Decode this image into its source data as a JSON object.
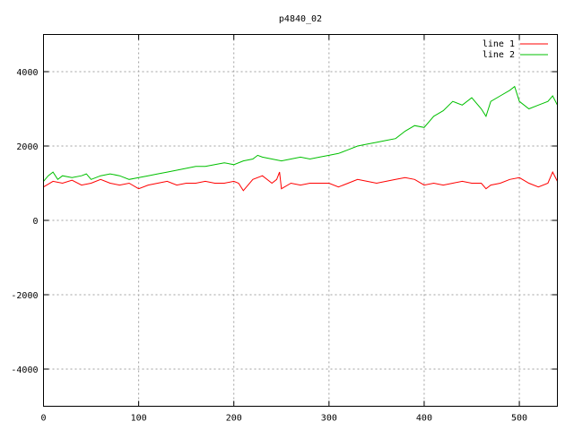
{
  "chart_data": {
    "type": "line",
    "title": "p4840_02",
    "xlim": [
      0,
      540
    ],
    "ylim": [
      -5000,
      5000
    ],
    "x_ticks": [
      0,
      100,
      200,
      300,
      400,
      500
    ],
    "y_ticks": [
      -4000,
      -2000,
      0,
      2000,
      4000
    ],
    "grid": true,
    "legend_position": "top-right",
    "series": [
      {
        "name": "line 1",
        "color": "#ff0000",
        "x": [
          0,
          10,
          20,
          30,
          40,
          50,
          60,
          70,
          80,
          90,
          100,
          110,
          120,
          130,
          140,
          150,
          160,
          170,
          180,
          190,
          200,
          205,
          210,
          220,
          230,
          240,
          245,
          248,
          250,
          260,
          270,
          280,
          290,
          300,
          310,
          320,
          330,
          340,
          350,
          360,
          370,
          380,
          390,
          400,
          410,
          420,
          430,
          440,
          450,
          460,
          465,
          470,
          480,
          490,
          500,
          510,
          520,
          530,
          535,
          540
        ],
        "y": [
          900,
          1050,
          1000,
          1080,
          950,
          1000,
          1100,
          1000,
          950,
          1000,
          850,
          950,
          1000,
          1050,
          950,
          1000,
          1000,
          1050,
          1000,
          1000,
          1050,
          1000,
          800,
          1100,
          1200,
          1000,
          1100,
          1300,
          850,
          1000,
          950,
          1000,
          1000,
          1000,
          900,
          1000,
          1100,
          1050,
          1000,
          1050,
          1100,
          1150,
          1100,
          950,
          1000,
          950,
          1000,
          1050,
          1000,
          1000,
          850,
          950,
          1000,
          1100,
          1150,
          1000,
          900,
          1000,
          1300,
          1050
        ]
      },
      {
        "name": "line 2",
        "color": "#00c000",
        "x": [
          0,
          5,
          10,
          15,
          20,
          30,
          40,
          45,
          50,
          60,
          70,
          80,
          90,
          100,
          110,
          120,
          130,
          140,
          150,
          160,
          170,
          180,
          190,
          200,
          210,
          220,
          225,
          230,
          240,
          250,
          260,
          270,
          280,
          290,
          300,
          310,
          320,
          330,
          340,
          350,
          360,
          370,
          380,
          390,
          400,
          410,
          420,
          430,
          440,
          450,
          460,
          465,
          470,
          480,
          490,
          495,
          500,
          510,
          520,
          530,
          535,
          540
        ],
        "y": [
          1050,
          1200,
          1300,
          1100,
          1200,
          1150,
          1200,
          1250,
          1100,
          1200,
          1250,
          1200,
          1100,
          1150,
          1200,
          1250,
          1300,
          1350,
          1400,
          1450,
          1450,
          1500,
          1550,
          1500,
          1600,
          1650,
          1750,
          1700,
          1650,
          1600,
          1650,
          1700,
          1650,
          1700,
          1750,
          1800,
          1900,
          2000,
          2050,
          2100,
          2150,
          2200,
          2400,
          2550,
          2500,
          2800,
          2950,
          3200,
          3100,
          3300,
          3000,
          2800,
          3200,
          3350,
          3500,
          3600,
          3200,
          3000,
          3100,
          3200,
          3350,
          3100
        ]
      }
    ]
  }
}
